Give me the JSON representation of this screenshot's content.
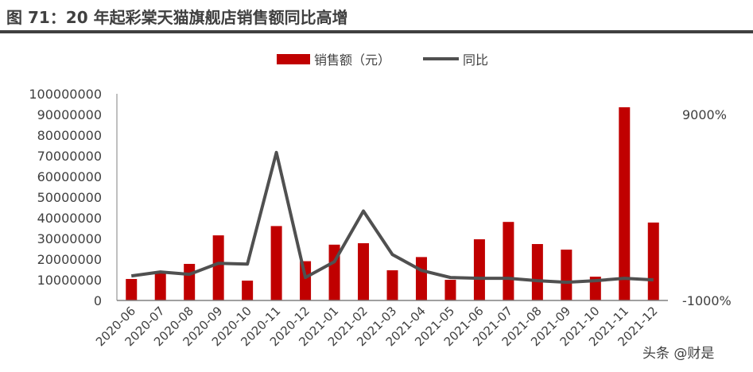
{
  "chart_data": {
    "type": "bar",
    "title": "图 71：20 年起彩棠天猫旗舰店销售额同比高增",
    "categories": [
      "2020-06",
      "2020-07",
      "2020-08",
      "2020-09",
      "2020-10",
      "2020-11",
      "2020-12",
      "2021-01",
      "2021-02",
      "2021-03",
      "2021-04",
      "2021-05",
      "2021-06",
      "2021-07",
      "2021-08",
      "2021-09",
      "2021-10",
      "2021-11",
      "2021-12"
    ],
    "series": [
      {
        "name": "销售额（元）",
        "type": "bar",
        "axis": "left",
        "color": "#C00000",
        "values": [
          10400000,
          13500000,
          17700000,
          31500000,
          9600000,
          36000000,
          19000000,
          27000000,
          27700000,
          14600000,
          21000000,
          10000000,
          29600000,
          38000000,
          27300000,
          24600000,
          11500000,
          93500000,
          37700000
        ]
      },
      {
        "name": "同比",
        "type": "line",
        "axis": "right",
        "color": "#505050",
        "values": [
          319,
          532,
          404,
          1000,
          957,
          6957,
          234,
          1085,
          3808,
          1468,
          617,
          234,
          191,
          191,
          64,
          -21,
          64,
          191,
          106
        ]
      }
    ],
    "ylim": [
      0,
      100000000
    ],
    "yticks": [
      "0",
      "10000000",
      "20000000",
      "30000000",
      "40000000",
      "50000000",
      "60000000",
      "70000000",
      "80000000",
      "90000000",
      "100000000"
    ],
    "y2lim": [
      -1000,
      10111
    ],
    "y2ticks": [
      {
        "value": -1000,
        "label": "-1000%"
      },
      {
        "value": 9000,
        "label": "9000%"
      }
    ],
    "legend": "top",
    "grid": false
  },
  "watermark": "头条 @财是"
}
